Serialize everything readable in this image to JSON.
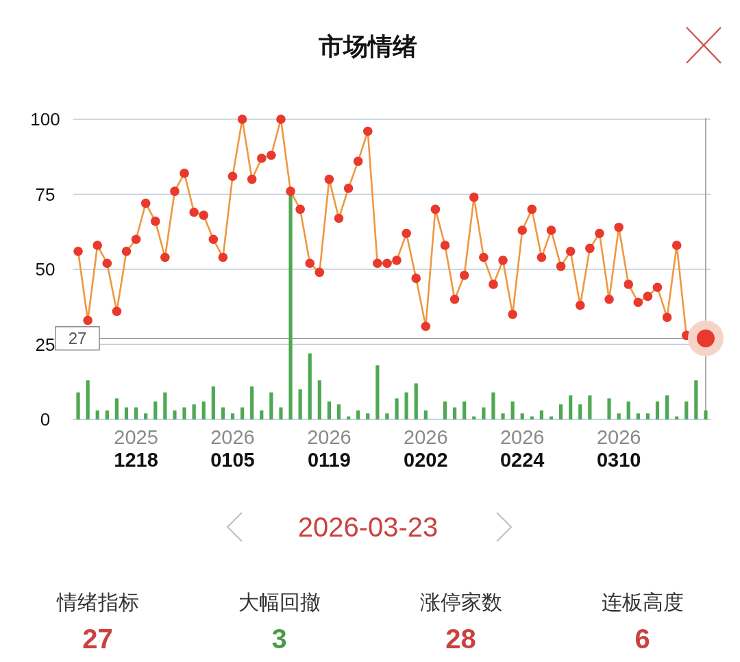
{
  "chart_data": [
    {
      "type": "line",
      "title": "市场情绪",
      "categories": [
        null,
        null,
        null,
        null,
        null,
        null,
        "2025\n1218",
        null,
        null,
        null,
        null,
        null,
        null,
        null,
        null,
        null,
        "2026\n0105",
        null,
        null,
        null,
        null,
        null,
        null,
        null,
        null,
        null,
        "2026\n0119",
        null,
        null,
        null,
        null,
        null,
        null,
        null,
        null,
        null,
        "2026\n0202",
        null,
        null,
        null,
        null,
        null,
        null,
        null,
        null,
        null,
        "2026\n0224",
        null,
        null,
        null,
        null,
        null,
        null,
        null,
        null,
        null,
        "2026\n0310",
        null,
        null,
        null,
        null,
        null,
        null,
        null,
        null,
        null
      ],
      "series": [
        {
          "type": "bar",
          "color": "#4fa852",
          "values": [
            9,
            13,
            3,
            3,
            7,
            4,
            4,
            2,
            6,
            9,
            3,
            4,
            5,
            6,
            11,
            4,
            2,
            4,
            11,
            3,
            9,
            4,
            75,
            10,
            22,
            13,
            6,
            5,
            1,
            3,
            2,
            18,
            2,
            7,
            9,
            12,
            3,
            0,
            6,
            4,
            6,
            1,
            4,
            9,
            2,
            6,
            2,
            1,
            3,
            1,
            5,
            8,
            5,
            8,
            0,
            7,
            2,
            6,
            2,
            2,
            6,
            8,
            1,
            6,
            13,
            3
          ]
        },
        {
          "type": "line",
          "color": "#e8392c",
          "values": [
            56,
            33,
            58,
            52,
            36,
            56,
            60,
            72,
            66,
            54,
            76,
            82,
            69,
            68,
            60,
            54,
            81,
            100,
            80,
            87,
            88,
            100,
            76,
            70,
            52,
            49,
            80,
            67,
            77,
            86,
            96,
            52,
            52,
            53,
            62,
            47,
            31,
            70,
            58,
            40,
            48,
            74,
            54,
            45,
            53,
            35,
            63,
            70,
            54,
            63,
            51,
            56,
            38,
            57,
            62,
            40,
            64,
            45,
            39,
            41,
            44,
            34,
            58,
            28,
            null,
            27
          ]
        }
      ],
      "ylim": [
        0,
        100
      ],
      "yticks": [
        0,
        25,
        50,
        75,
        100
      ],
      "grid": "y",
      "marker": "circle",
      "ref_lines": [
        {
          "axis": "y",
          "value": 27,
          "label": "27",
          "color": "#8c8c8c"
        }
      ]
    },
    {
      "type": "other",
      "title": "2026-03-23",
      "categories": [
        "情绪指标",
        "大幅回撤",
        "涨停家数",
        "连板高度"
      ],
      "values": [
        27,
        3,
        28,
        6
      ],
      "colors": [
        "#c9423f",
        "#4a9a47",
        "#c9423f",
        "#c9423f"
      ],
      "data_labels": true
    }
  ]
}
